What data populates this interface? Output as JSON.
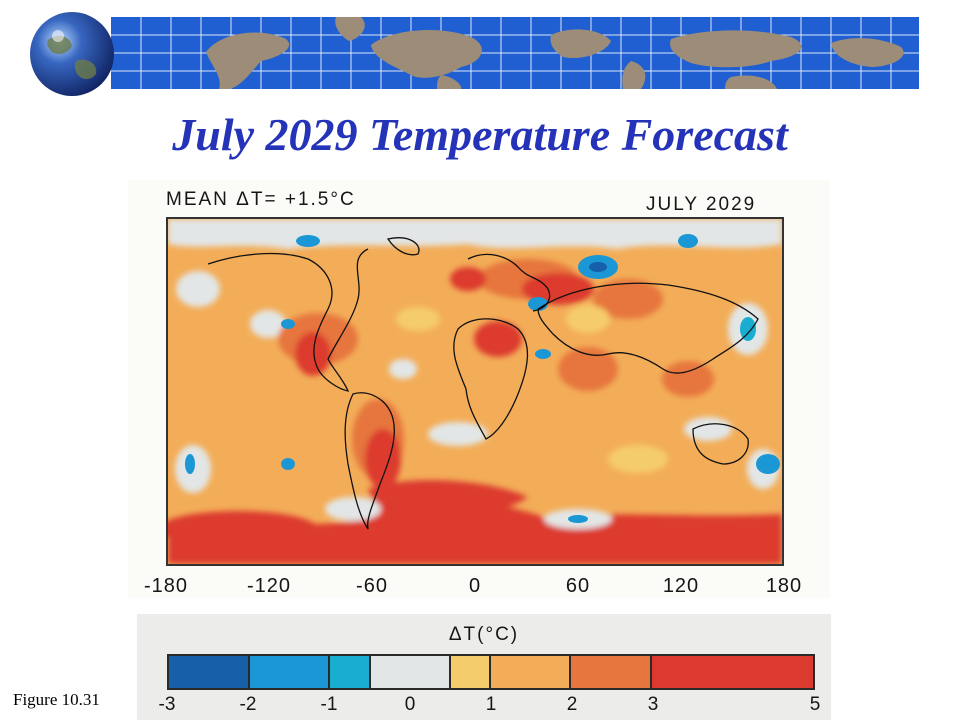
{
  "slide": {
    "title": "July 2029 Temperature Forecast",
    "caption": "Figure 10.31"
  },
  "header": {
    "banner_color": "#1f5fd1",
    "land_color": "#9c8c78",
    "globe_icon": "globe-icon"
  },
  "map": {
    "mean_label": "MEAN ΔT= +1.5°C",
    "date_label": "JULY 2029",
    "x_ticks": [
      "-180",
      "-120",
      "-60",
      "0",
      "60",
      "120",
      "180"
    ],
    "x_tick_values": [
      -180,
      -120,
      -60,
      0,
      60,
      120,
      180
    ],
    "x_range": [
      -180,
      180
    ],
    "y_range": [
      -90,
      90
    ]
  },
  "legend": {
    "title": "ΔT(°C)",
    "tick_labels": [
      "-3",
      "-2",
      "-1",
      "0",
      "1",
      "2",
      "3",
      "5"
    ],
    "bins": [
      {
        "from": -3,
        "to": -2,
        "color": "#1560a8"
      },
      {
        "from": -2,
        "to": -1,
        "color": "#1a97d4"
      },
      {
        "from": -1,
        "to": -0.5,
        "color": "#19aed0"
      },
      {
        "from": -0.5,
        "to": 0.5,
        "color": "#e2e6e6"
      },
      {
        "from": 0.5,
        "to": 1,
        "color": "#f5cc6c"
      },
      {
        "from": 1,
        "to": 2,
        "color": "#f3ad58"
      },
      {
        "from": 2,
        "to": 3,
        "color": "#e6763d"
      },
      {
        "from": 3,
        "to": 5,
        "color": "#dc3a2e"
      }
    ]
  }
}
